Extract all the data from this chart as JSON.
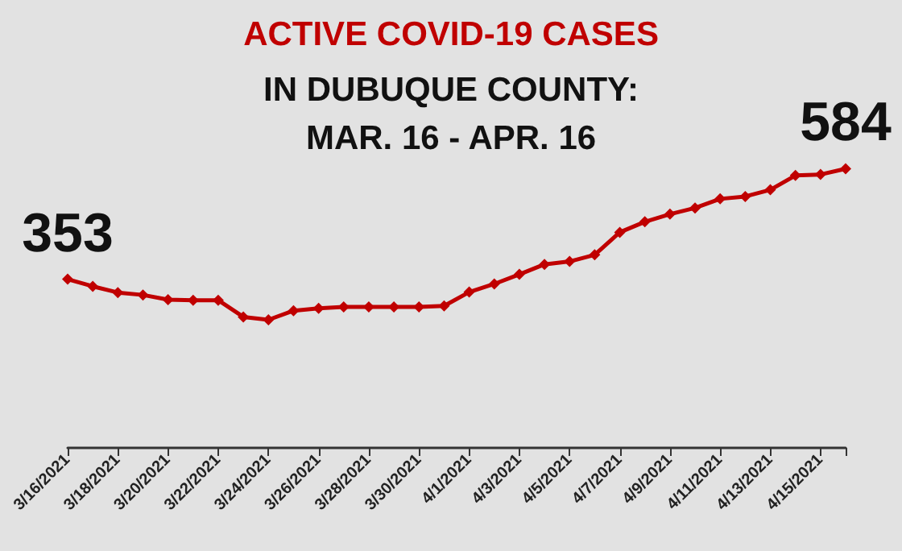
{
  "chart_data": {
    "type": "line",
    "title": "ACTIVE COVID-19 CASES",
    "subtitle": "IN DUBUQUE COUNTY:\nMAR. 16 - APR. 16",
    "categories": [
      "3/16/2021",
      null,
      "3/18/2021",
      null,
      "3/20/2021",
      null,
      "3/22/2021",
      null,
      "3/24/2021",
      null,
      "3/26/2021",
      null,
      "3/28/2021",
      null,
      "3/30/2021",
      null,
      "4/1/2021",
      null,
      "4/3/2021",
      null,
      "4/5/2021",
      null,
      "4/7/2021",
      null,
      "4/9/2021",
      null,
      "4/11/2021",
      null,
      "4/13/2021",
      null,
      "4/15/2021",
      null
    ],
    "series": [
      {
        "color": "#c00000",
        "values": [
          353,
          338,
          325,
          320,
          310,
          309,
          309,
          274,
          268,
          287,
          292,
          295,
          295,
          295,
          295,
          297,
          326,
          343,
          363,
          384,
          390,
          404,
          451,
          473,
          489,
          502,
          521,
          526,
          540,
          570,
          572,
          584
        ],
        "value_labels": [
          "353",
          null,
          null,
          null,
          null,
          null,
          null,
          null,
          null,
          null,
          null,
          null,
          null,
          null,
          null,
          null,
          null,
          null,
          null,
          null,
          null,
          null,
          null,
          null,
          null,
          null,
          null,
          null,
          null,
          null,
          null,
          "584"
        ]
      }
    ],
    "tick_labels": "x",
    "marker": "diamond",
    "line_style": "solid"
  }
}
